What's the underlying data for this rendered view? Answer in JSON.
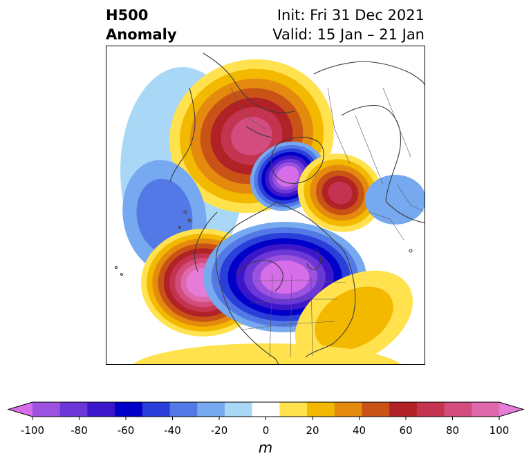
{
  "title": {
    "left_line1": "H500",
    "left_line2": "Anomaly",
    "right_line1": "Init: Fri 31 Dec 2021",
    "right_line2": "Valid: 15 Jan – 21 Jan"
  },
  "colorbar": {
    "unit": "m",
    "ticks": [
      "-100",
      "-80",
      "-60",
      "-40",
      "-20",
      "0",
      "20",
      "40",
      "60",
      "80",
      "100"
    ],
    "levels": [
      -100,
      -90,
      -80,
      -70,
      -60,
      -50,
      -40,
      -30,
      -20,
      -10,
      10,
      20,
      30,
      40,
      50,
      60,
      70,
      80,
      90,
      100
    ],
    "colors": [
      "#d56ee8",
      "#9a52df",
      "#6b37d6",
      "#3c17c9",
      "#0000c8",
      "#2a3fd9",
      "#5279e6",
      "#76a9ef",
      "#a9d8f6",
      "#ffffff",
      "#ffe24d",
      "#f2b900",
      "#e48a0e",
      "#c95316",
      "#b02225",
      "#c43450",
      "#d24d7d",
      "#df68ab",
      "#e67bd8"
    ],
    "extend": "both"
  },
  "map": {
    "projection": "polar stereographic (north)",
    "features": [
      "coastlines",
      "country borders",
      "US state and Canadian province borders"
    ],
    "anomaly_centers": [
      {
        "region": "Northern Canada / Greenland",
        "sign": "positive",
        "peak_class": "70 to 80"
      },
      {
        "region": "Northern Siberia / Arctic",
        "sign": "negative",
        "peak_class": "below -100"
      },
      {
        "region": "Eastern Europe / Western Russia",
        "sign": "positive",
        "peak_class": "60 to 70"
      },
      {
        "region": "Central Asia",
        "sign": "negative",
        "peak_class": "-30 to -20"
      },
      {
        "region": "North Pacific / Bering Sea",
        "sign": "negative",
        "peak_class": "-40 to -30"
      },
      {
        "region": "Northeast Pacific",
        "sign": "positive",
        "peak_class": "above 100"
      },
      {
        "region": "East Asia / Japan",
        "sign": "negative",
        "peak_class": "below -100"
      },
      {
        "region": "North-central Pacific",
        "sign": "positive",
        "peak_class": "20 to 30"
      },
      {
        "region": "Southern US / Mexico",
        "sign": "positive",
        "peak_class": "10 to 20"
      }
    ]
  }
}
